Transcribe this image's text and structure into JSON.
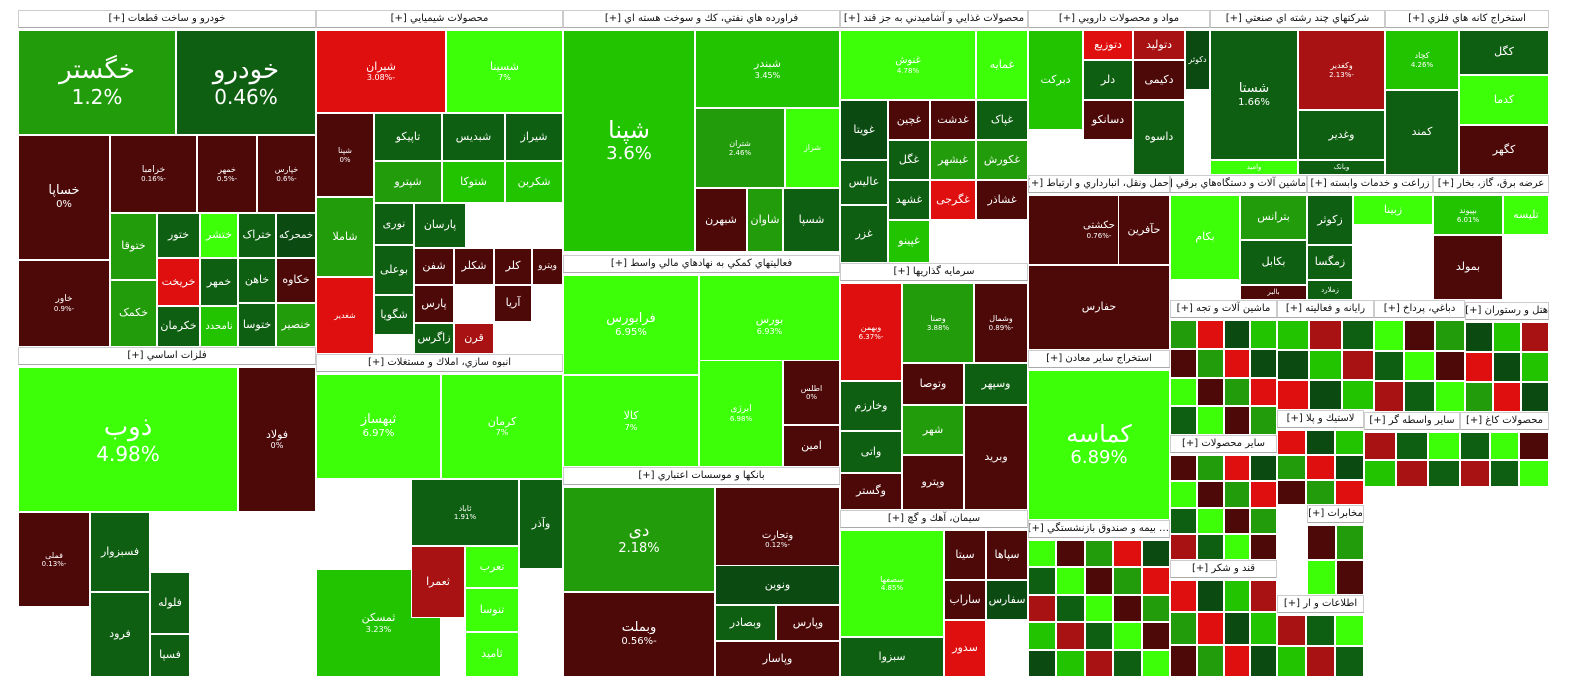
{
  "panels": [
    {
      "title": "خودرو و ساخت قطعات [+]",
      "tiles": [
        [
          "خگستر",
          "1.2%",
          "c-m",
          26
        ],
        [
          "خودرو",
          "0.46%",
          "c-d",
          26
        ],
        [
          "خساپا",
          "0%",
          "c-k",
          13
        ],
        [
          "خرامبا",
          "-0.16%",
          "c-k",
          9
        ],
        [
          "خمهر",
          "-0.5%",
          "c-k",
          8
        ],
        [
          "خپارس",
          "-0.6%",
          "c-k",
          8
        ],
        [
          "خاور",
          "-0.9%",
          "c-k",
          9
        ],
        [
          "ختوقا",
          "",
          "c-m",
          11
        ],
        [
          "ختور",
          "",
          "c-d",
          11
        ],
        [
          "ختشر",
          "",
          "c-l",
          11
        ],
        [
          "خکرمان",
          "",
          "c-d",
          11
        ],
        [
          "خریخت",
          "",
          "c-r",
          11
        ],
        [
          "خمهر",
          "",
          "c-d",
          11
        ],
        [
          "خاهن",
          "",
          "c-d",
          11
        ],
        [
          "خکمک",
          "",
          "c-m",
          11
        ],
        [
          "نامحدد",
          "",
          "c-b",
          11
        ],
        [
          "ختراک",
          "",
          "c-d",
          11
        ],
        [
          "خمحرکه",
          "",
          "c-g",
          11
        ],
        [
          "خکاوه",
          "",
          "c-k",
          11
        ],
        [
          "ختوسا",
          "",
          "c-d",
          11
        ],
        [
          "خنصیر",
          "",
          "c-m",
          11
        ],
        [
          "خفنر",
          "",
          "c-k",
          11
        ],
        [
          "خودکا",
          "",
          "c-d",
          11
        ]
      ]
    },
    {
      "title": "محصولات شيميايي [+]",
      "tiles": [
        [
          "شیران",
          "-3.08%",
          "c-r",
          11
        ],
        [
          "شسینا",
          "7%",
          "c-l",
          11
        ],
        [
          "شپنا",
          "0%",
          "c-k",
          8
        ],
        [
          "تاپیکو",
          "",
          "c-d",
          11
        ],
        [
          "شبدیس",
          "",
          "c-d",
          11
        ],
        [
          "شیراز",
          "",
          "c-d",
          11
        ],
        [
          "شپترو",
          "",
          "c-m",
          11
        ],
        [
          "شتوکا",
          "",
          "c-b",
          11
        ],
        [
          "شکربن",
          "",
          "c-b",
          11
        ],
        [
          "نوری",
          "",
          "c-d",
          11
        ],
        [
          "پارسان",
          "",
          "c-d",
          11
        ],
        [
          "بوعلی",
          "",
          "c-d",
          11
        ],
        [
          "شفن",
          "",
          "c-k",
          11
        ],
        [
          "شکلر",
          "",
          "c-k",
          11
        ],
        [
          "شگویا",
          "",
          "c-d",
          11
        ],
        [
          "شاملا",
          "",
          "c-m",
          11
        ],
        [
          "پارس",
          "",
          "c-k",
          11
        ],
        [
          "زاگرس",
          "",
          "c-d",
          11
        ],
        [
          "کلر",
          "",
          "c-k",
          11
        ],
        [
          "ویترو",
          "",
          "c-k",
          11
        ],
        [
          "آریا",
          "",
          "c-k",
          11
        ],
        [
          "قرن",
          "",
          "c-x",
          11
        ],
        [
          "شغدیر",
          "",
          "c-r",
          8
        ]
      ]
    },
    {
      "title": "فراورده هاي نفتي، كك و سوخت هسته اي [+]",
      "tiles": [
        [
          "شپنا",
          "3.6%",
          "c-b",
          24
        ],
        [
          "شبندر",
          "3.45%",
          "c-b",
          11
        ],
        [
          "شتران",
          "2.46%",
          "c-m",
          8
        ],
        [
          "شراز",
          "",
          "c-l",
          8
        ],
        [
          "شبهرن",
          "",
          "c-k",
          11
        ],
        [
          "شاوان",
          "",
          "c-m",
          11
        ],
        [
          "شسپا",
          "",
          "c-d",
          11
        ]
      ]
    },
    {
      "title": "فعاليتهاي كمكي به نهادهاي مالي واسط [+]",
      "tiles": [
        [
          "فرابورس",
          "6.95%",
          "c-l",
          13
        ],
        [
          "بورس",
          "6.93%",
          "c-l",
          11
        ],
        [
          "کالا",
          "7%",
          "c-l",
          11
        ],
        [
          "ابرژی",
          "6.98%",
          "c-l",
          9
        ],
        [
          "اطلس",
          "0%",
          "c-k",
          8
        ],
        [
          "امین",
          "",
          "c-k",
          11
        ]
      ]
    },
    {
      "title": "بانكها و موسسات اعتباري [+]",
      "tiles": [
        [
          "دی",
          "2.18%",
          "c-m",
          17
        ],
        [
          "وتجارت",
          "-0.12%",
          "c-k",
          10
        ],
        [
          "وبملت",
          "-0.56%",
          "c-k",
          13
        ],
        [
          "ونوین",
          "",
          "c-g",
          11
        ],
        [
          "وبصادر",
          "",
          "c-d",
          11
        ],
        [
          "وپارس",
          "",
          "c-k",
          11
        ],
        [
          "وپاسار",
          "",
          "c-k",
          11
        ]
      ]
    },
    {
      "title": "محصولات غذايي و آشاميدني به جز قند [+]",
      "tiles": [
        [
          "غنوش",
          "4.78%",
          "c-l",
          10
        ],
        [
          "غمایه",
          "",
          "c-l",
          11
        ],
        [
          "غویتا",
          "",
          "c-g",
          11
        ],
        [
          "غچین",
          "",
          "c-k",
          11
        ],
        [
          "غدشت",
          "",
          "c-k",
          11
        ],
        [
          "غپاک",
          "",
          "c-d",
          11
        ],
        [
          "غگل",
          "",
          "c-d",
          11
        ],
        [
          "عالیس",
          "",
          "c-d",
          11
        ],
        [
          "غزر",
          "",
          "c-d",
          11
        ],
        [
          "غشهد",
          "",
          "c-d",
          11
        ],
        [
          "غبشهر",
          "",
          "c-m",
          11
        ],
        [
          "غکورش",
          "",
          "c-m",
          11
        ],
        [
          "غپینو",
          "",
          "c-b",
          11
        ],
        [
          "غگرجی",
          "",
          "c-r",
          11
        ],
        [
          "غشاذر",
          "",
          "c-k",
          11
        ]
      ]
    },
    {
      "title": "سرمايه گذاريها [+]",
      "tiles": [
        [
          "وبهمن",
          "-6.37%",
          "c-r",
          8
        ],
        [
          "وصنا",
          "3.88%",
          "c-m",
          8
        ],
        [
          "وشمال",
          "-0.89%",
          "c-k",
          8
        ],
        [
          "وخارزم",
          "",
          "c-d",
          11
        ],
        [
          "وتوصا",
          "",
          "c-k",
          11
        ],
        [
          "وسپهر",
          "",
          "c-d",
          11
        ],
        [
          "واتی",
          "",
          "c-d",
          11
        ],
        [
          "شهر",
          "",
          "c-m",
          11
        ],
        [
          "وگستر",
          "",
          "c-k",
          11
        ],
        [
          "وپترو",
          "",
          "c-k",
          11
        ],
        [
          "وبرید",
          "",
          "c-k",
          11
        ]
      ]
    },
    {
      "title": "سيمان، آهك و گچ [+]",
      "tiles": [
        [
          "سصفها",
          "4.85%",
          "c-l",
          8
        ],
        [
          "سیتا",
          "",
          "c-k",
          11
        ],
        [
          "سپاها",
          "",
          "c-k",
          11
        ],
        [
          "سبزوا",
          "",
          "c-d",
          11
        ],
        [
          "ساراب",
          "",
          "c-k",
          11
        ],
        [
          "سفارس",
          "",
          "c-g",
          11
        ],
        [
          "سدور",
          "",
          "c-r",
          11
        ]
      ]
    },
    {
      "title": "مواد و محصولات دارويي [+]",
      "tiles": [
        [
          "دتوزیع",
          "",
          "c-r",
          11
        ],
        [
          "دتولید",
          "",
          "c-x",
          11
        ],
        [
          "دکوثر",
          "",
          "c-g",
          11
        ],
        [
          "دبرکت",
          "",
          "c-b",
          11
        ],
        [
          "دلر",
          "",
          "c-d",
          11
        ],
        [
          "دکیمی",
          "",
          "c-k",
          11
        ],
        [
          "دسانکو",
          "",
          "c-k",
          11
        ],
        [
          "داسوه",
          "",
          "c-d",
          11
        ]
      ]
    },
    {
      "title": "شركتهاي چند رشته اي صنعتي [+]",
      "tiles": [
        [
          "شستا",
          "1.66%",
          "c-d",
          13
        ],
        [
          "وکغدیر",
          "-2.13%",
          "c-x",
          8
        ],
        [
          "وغدیر",
          "",
          "c-d",
          11
        ],
        [
          "وبانک",
          "",
          "c-d",
          11
        ],
        [
          "وامید",
          "",
          "c-l",
          11
        ]
      ]
    },
    {
      "title": "استخراج كانه هاي فلزي [+]",
      "tiles": [
        [
          "کچاد",
          "4.26%",
          "c-b",
          8
        ],
        [
          "کگل",
          "",
          "c-d",
          11
        ],
        [
          "کدما",
          "",
          "c-l",
          11
        ],
        [
          "کگهر",
          "",
          "c-k",
          11
        ],
        [
          "کمند",
          "",
          "c-d",
          11
        ]
      ]
    },
    {
      "title": "حمل ونقل، انبارداري و ارتباط [+]",
      "tiles": [
        [
          "حکشتی",
          "-0.76%",
          "c-k",
          10
        ],
        [
          "حفارس",
          "",
          "c-k",
          11
        ],
        [
          "حتاید",
          "",
          "c-k",
          11
        ],
        [
          "حآفرین",
          "",
          "c-k",
          11
        ]
      ]
    },
    {
      "title": "ماشين آلات و دستگاه‌هاي برقي [+]",
      "tiles": [
        [
          "بترانس",
          "",
          "c-m",
          11
        ],
        [
          "بکابل",
          "",
          "c-d",
          11
        ],
        [
          "بکام",
          "",
          "c-l",
          11
        ],
        [
          "بالبر",
          "",
          "c-k",
          11
        ]
      ]
    },
    {
      "title": "زراعت و خدمات وابسته [+]",
      "tiles": [
        [
          "زکوثر",
          "",
          "c-d",
          11
        ],
        [
          "زمگسا",
          "",
          "c-d",
          11
        ],
        [
          "زملارد",
          "",
          "c-d",
          11
        ],
        [
          "زبینا",
          "",
          "c-l",
          11
        ]
      ]
    },
    {
      "title": "عرضه برق، گاز، بخار [+]",
      "tiles": [
        [
          "بمولد",
          "",
          "c-k",
          11
        ],
        [
          "تلیسه",
          "",
          "c-l",
          11
        ],
        [
          "بپیوند",
          "6.01%",
          "c-b",
          8
        ]
      ]
    },
    {
      "title": "استخراج ساير معادن [+]",
      "tiles": [
        [
          "کماسه",
          "6.89%",
          "c-l",
          24
        ]
      ]
    },
    {
      "title": "انبوه سازي، املاك و مستغلات [+]",
      "tiles": [
        [
          "ثمسکن",
          "3.23%",
          "c-b",
          11
        ],
        [
          "ثبهساز",
          "6.97%",
          "c-l",
          13
        ],
        [
          "کرمان",
          "7%",
          "c-l",
          11
        ],
        [
          "ثاباد",
          "1.91%",
          "c-d",
          8
        ],
        [
          "وآذر",
          "",
          "c-d",
          11
        ],
        [
          "ثعمرا",
          "",
          "c-x",
          11
        ],
        [
          "تعرب",
          "",
          "c-l",
          11
        ],
        [
          "تنوسا",
          "",
          "c-l",
          11
        ],
        [
          "ثامید",
          "",
          "c-l",
          11
        ]
      ]
    },
    {
      "title": "فلزات اساسي [+]",
      "tiles": [
        [
          "ذوب",
          "4.98%",
          "c-l",
          26
        ],
        [
          "فولاد",
          "0%",
          "c-k",
          11
        ],
        [
          "فملی",
          "-0.13%",
          "c-k",
          8
        ],
        [
          "فسبزوار",
          "",
          "c-d",
          11
        ],
        [
          "فرود",
          "",
          "c-d",
          11
        ],
        [
          "فلوله",
          "",
          "c-d",
          11
        ],
        [
          "فسپا",
          "",
          "c-d",
          11
        ]
      ]
    }
  ],
  "small_panels": [
    {
      "title": "… بيمه و صندوق بازنشستگي [+]"
    },
    {
      "title": "قند و شكر [+]"
    },
    {
      "title": "اطلاعات و ار [+]"
    },
    {
      "title": "مخابرات [+]"
    },
    {
      "title": "هتل و رستوران [+]"
    },
    {
      "title": "محصولات كاغ [+]"
    },
    {
      "title": "ماشين آلات و تجه [+]"
    },
    {
      "title": "رايانه و فعاليته [+]"
    },
    {
      "title": "دباغي، پرداخ [+]"
    },
    {
      "title": "لاستيك و پلا [+]"
    },
    {
      "title": "ساير واسطه گر [+]"
    },
    {
      "title": "ساير محصولات [+]"
    }
  ]
}
